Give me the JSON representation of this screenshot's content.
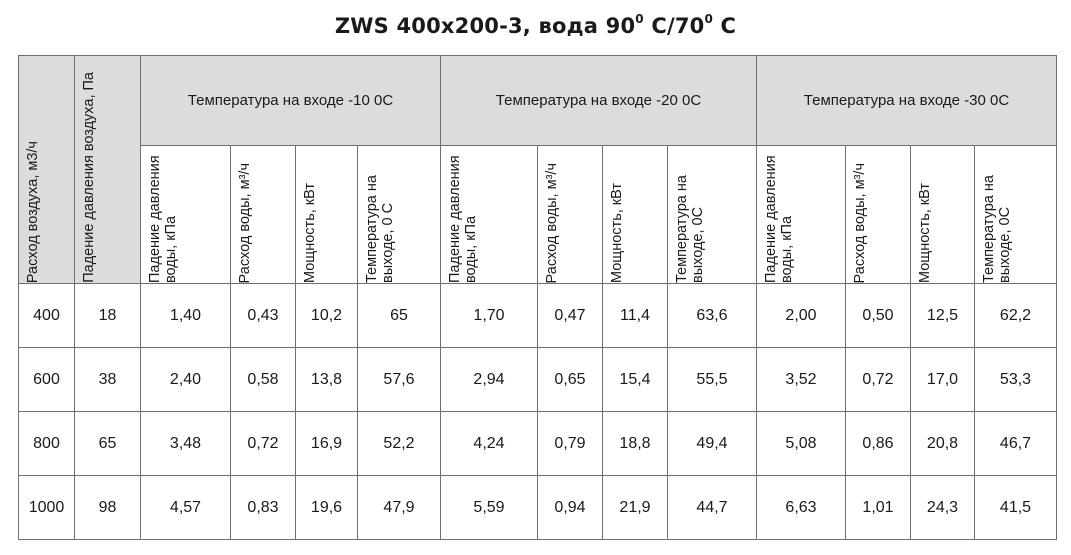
{
  "title": {
    "main": "ZWS 400x200-3, вода 90",
    "sup1": "0",
    "mid": " С/70",
    "sup2": "0",
    "end": " С"
  },
  "table": {
    "col_airflow": "Расход воздуха, м3/ч",
    "col_air_pressure": "Падение давления воздуха, Па",
    "groups": [
      "Температура на входе -10 0С",
      "Температура на входе -20 0С",
      "Температура на входе -30 0С"
    ],
    "sub_headers": {
      "g1": [
        "Падение давления воды, кПа",
        "Расход воды, м³/ч",
        "Мощность, кВт",
        "Температура на выходе, 0 С"
      ],
      "g2": [
        "Падение давления воды, кПа",
        "Расход воды, м³/ч",
        "Мощность, кВт",
        "Температура на выходе, 0С"
      ],
      "g3": [
        "Падение давления воды, кПа",
        "Расход воды, м³/ч",
        "Мощность, кВт",
        "Температура на выходе, 0С"
      ]
    },
    "rows": [
      [
        "400",
        "18",
        "1,40",
        "0,43",
        "10,2",
        "65",
        "1,70",
        "0,47",
        "11,4",
        "63,6",
        "2,00",
        "0,50",
        "12,5",
        "62,2"
      ],
      [
        "600",
        "38",
        "2,40",
        "0,58",
        "13,8",
        "57,6",
        "2,94",
        "0,65",
        "15,4",
        "55,5",
        "3,52",
        "0,72",
        "17,0",
        "53,3"
      ],
      [
        "800",
        "65",
        "3,48",
        "0,72",
        "16,9",
        "52,2",
        "4,24",
        "0,79",
        "18,8",
        "49,4",
        "5,08",
        "0,86",
        "20,8",
        "46,7"
      ],
      [
        "1000",
        "98",
        "4,57",
        "0,83",
        "19,6",
        "47,9",
        "5,59",
        "0,94",
        "21,9",
        "44,7",
        "6,63",
        "1,01",
        "24,3",
        "41,5"
      ]
    ]
  }
}
